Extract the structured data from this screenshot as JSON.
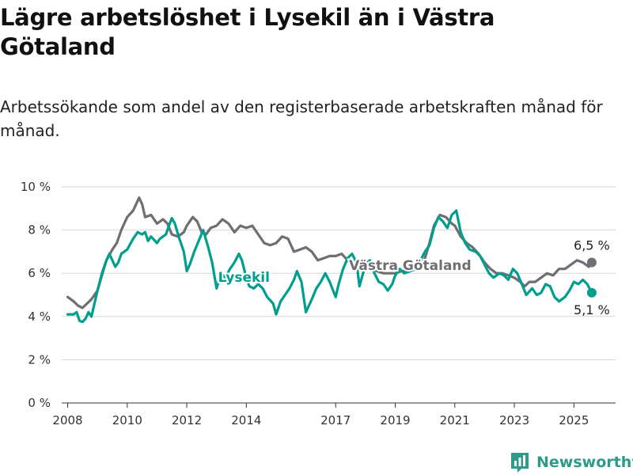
{
  "title": "Lägre arbetslöshet i Lysekil än i Västra Götaland",
  "subtitle": "Arbetssökande som andel av den registerbaserade arbetskraften månad för månad.",
  "brand": "Newsworthy",
  "colors": {
    "lysekil": "#009e8e",
    "vg": "#6e6e73",
    "grid": "#d6d6d6",
    "text": "#333333"
  },
  "chart_data": {
    "type": "line",
    "x_unit": "year",
    "xlim": [
      2007.8,
      2026.4
    ],
    "ylim": [
      0,
      10
    ],
    "y_ticks": [
      0,
      2,
      4,
      6,
      8,
      10
    ],
    "y_tick_labels": [
      "0 %",
      "2 %",
      "4 %",
      "6 %",
      "8 %",
      "10 %"
    ],
    "x_ticks": [
      2008,
      2010,
      2012,
      2014,
      2017,
      2019,
      2021,
      2023,
      2025
    ],
    "x_tick_labels": [
      "2008",
      "2010",
      "2012",
      "2014",
      "2017",
      "2019",
      "2021",
      "2023",
      "2025"
    ],
    "grid": true,
    "series": [
      {
        "name": "Västra Götaland",
        "key": "vg",
        "end_label": "6,5 %",
        "points": [
          [
            2008.0,
            4.9
          ],
          [
            2008.2,
            4.7
          ],
          [
            2008.35,
            4.5
          ],
          [
            2008.5,
            4.4
          ],
          [
            2008.65,
            4.6
          ],
          [
            2008.8,
            4.8
          ],
          [
            2009.0,
            5.2
          ],
          [
            2009.15,
            5.9
          ],
          [
            2009.3,
            6.6
          ],
          [
            2009.5,
            7.1
          ],
          [
            2009.65,
            7.4
          ],
          [
            2009.8,
            8.0
          ],
          [
            2009.9,
            8.3
          ],
          [
            2010.0,
            8.6
          ],
          [
            2010.2,
            8.9
          ],
          [
            2010.3,
            9.2
          ],
          [
            2010.4,
            9.5
          ],
          [
            2010.5,
            9.2
          ],
          [
            2010.6,
            8.6
          ],
          [
            2010.8,
            8.7
          ],
          [
            2011.0,
            8.3
          ],
          [
            2011.2,
            8.5
          ],
          [
            2011.35,
            8.3
          ],
          [
            2011.5,
            7.8
          ],
          [
            2011.7,
            7.7
          ],
          [
            2011.9,
            7.9
          ],
          [
            2012.0,
            8.2
          ],
          [
            2012.1,
            8.4
          ],
          [
            2012.2,
            8.6
          ],
          [
            2012.35,
            8.4
          ],
          [
            2012.5,
            7.9
          ],
          [
            2012.65,
            7.8
          ],
          [
            2012.8,
            8.1
          ],
          [
            2013.0,
            8.2
          ],
          [
            2013.2,
            8.5
          ],
          [
            2013.4,
            8.3
          ],
          [
            2013.6,
            7.9
          ],
          [
            2013.8,
            8.2
          ],
          [
            2014.0,
            8.1
          ],
          [
            2014.2,
            8.2
          ],
          [
            2014.4,
            7.8
          ],
          [
            2014.6,
            7.4
          ],
          [
            2014.8,
            7.3
          ],
          [
            2015.0,
            7.4
          ],
          [
            2015.2,
            7.7
          ],
          [
            2015.4,
            7.6
          ],
          [
            2015.6,
            7.0
          ],
          [
            2015.8,
            7.1
          ],
          [
            2016.0,
            7.2
          ],
          [
            2016.2,
            7.0
          ],
          [
            2016.4,
            6.6
          ],
          [
            2016.6,
            6.7
          ],
          [
            2016.8,
            6.8
          ],
          [
            2017.0,
            6.8
          ],
          [
            2017.2,
            6.9
          ],
          [
            2017.4,
            6.6
          ],
          [
            2017.6,
            6.4
          ],
          [
            2017.8,
            6.5
          ],
          [
            2018.0,
            6.3
          ],
          [
            2018.2,
            6.2
          ],
          [
            2018.4,
            6.1
          ],
          [
            2018.6,
            6.0
          ],
          [
            2018.8,
            6.0
          ],
          [
            2019.0,
            6.0
          ],
          [
            2019.2,
            6.1
          ],
          [
            2019.4,
            6.1
          ],
          [
            2019.6,
            6.2
          ],
          [
            2019.8,
            6.3
          ],
          [
            2020.0,
            6.7
          ],
          [
            2020.15,
            7.4
          ],
          [
            2020.3,
            8.2
          ],
          [
            2020.5,
            8.7
          ],
          [
            2020.7,
            8.6
          ],
          [
            2020.9,
            8.3
          ],
          [
            2021.0,
            8.2
          ],
          [
            2021.2,
            7.7
          ],
          [
            2021.4,
            7.4
          ],
          [
            2021.6,
            7.2
          ],
          [
            2021.8,
            6.9
          ],
          [
            2022.0,
            6.5
          ],
          [
            2022.2,
            6.2
          ],
          [
            2022.4,
            6.0
          ],
          [
            2022.6,
            6.0
          ],
          [
            2022.8,
            5.9
          ],
          [
            2023.0,
            5.8
          ],
          [
            2023.2,
            5.6
          ],
          [
            2023.35,
            5.4
          ],
          [
            2023.5,
            5.6
          ],
          [
            2023.7,
            5.6
          ],
          [
            2023.9,
            5.8
          ],
          [
            2024.1,
            6.0
          ],
          [
            2024.3,
            5.9
          ],
          [
            2024.5,
            6.2
          ],
          [
            2024.7,
            6.2
          ],
          [
            2024.9,
            6.4
          ],
          [
            2025.1,
            6.6
          ],
          [
            2025.3,
            6.5
          ],
          [
            2025.5,
            6.3
          ],
          [
            2025.6,
            6.5
          ]
        ]
      },
      {
        "name": "Lysekil",
        "key": "lysekil",
        "end_label": "5,1 %",
        "points": [
          [
            2008.0,
            4.1
          ],
          [
            2008.2,
            4.1
          ],
          [
            2008.3,
            4.2
          ],
          [
            2008.4,
            3.8
          ],
          [
            2008.5,
            3.75
          ],
          [
            2008.6,
            3.9
          ],
          [
            2008.7,
            4.2
          ],
          [
            2008.8,
            4.0
          ],
          [
            2008.9,
            4.6
          ],
          [
            2009.0,
            5.2
          ],
          [
            2009.15,
            6.0
          ],
          [
            2009.3,
            6.6
          ],
          [
            2009.4,
            6.9
          ],
          [
            2009.5,
            6.6
          ],
          [
            2009.6,
            6.3
          ],
          [
            2009.7,
            6.5
          ],
          [
            2009.8,
            6.9
          ],
          [
            2010.0,
            7.1
          ],
          [
            2010.2,
            7.6
          ],
          [
            2010.35,
            7.9
          ],
          [
            2010.5,
            7.8
          ],
          [
            2010.6,
            7.9
          ],
          [
            2010.7,
            7.5
          ],
          [
            2010.8,
            7.7
          ],
          [
            2011.0,
            7.4
          ],
          [
            2011.1,
            7.6
          ],
          [
            2011.3,
            7.8
          ],
          [
            2011.4,
            8.2
          ],
          [
            2011.5,
            8.55
          ],
          [
            2011.6,
            8.3
          ],
          [
            2011.75,
            7.6
          ],
          [
            2011.9,
            7.0
          ],
          [
            2012.0,
            6.1
          ],
          [
            2012.1,
            6.4
          ],
          [
            2012.25,
            7.0
          ],
          [
            2012.4,
            7.5
          ],
          [
            2012.55,
            8.0
          ],
          [
            2012.7,
            7.3
          ],
          [
            2012.85,
            6.5
          ],
          [
            2013.0,
            5.3
          ],
          [
            2013.15,
            6.0
          ],
          [
            2013.3,
            5.8
          ],
          [
            2013.45,
            6.2
          ],
          [
            2013.6,
            6.5
          ],
          [
            2013.75,
            6.9
          ],
          [
            2013.85,
            6.6
          ],
          [
            2014.0,
            5.8
          ],
          [
            2014.1,
            5.4
          ],
          [
            2014.25,
            5.3
          ],
          [
            2014.4,
            5.5
          ],
          [
            2014.55,
            5.3
          ],
          [
            2014.7,
            4.9
          ],
          [
            2014.9,
            4.6
          ],
          [
            2015.0,
            4.1
          ],
          [
            2015.15,
            4.7
          ],
          [
            2015.3,
            5.0
          ],
          [
            2015.45,
            5.3
          ],
          [
            2015.6,
            5.7
          ],
          [
            2015.7,
            6.1
          ],
          [
            2015.85,
            5.6
          ],
          [
            2016.0,
            4.2
          ],
          [
            2016.2,
            4.8
          ],
          [
            2016.35,
            5.3
          ],
          [
            2016.5,
            5.6
          ],
          [
            2016.65,
            6.0
          ],
          [
            2016.8,
            5.6
          ],
          [
            2017.0,
            4.9
          ],
          [
            2017.1,
            5.5
          ],
          [
            2017.25,
            6.2
          ],
          [
            2017.4,
            6.7
          ],
          [
            2017.55,
            6.9
          ],
          [
            2017.7,
            6.5
          ],
          [
            2017.8,
            5.4
          ],
          [
            2017.9,
            5.9
          ],
          [
            2018.0,
            6.4
          ],
          [
            2018.15,
            6.6
          ],
          [
            2018.3,
            6.0
          ],
          [
            2018.45,
            5.6
          ],
          [
            2018.6,
            5.5
          ],
          [
            2018.75,
            5.2
          ],
          [
            2018.9,
            5.5
          ],
          [
            2019.0,
            5.9
          ],
          [
            2019.15,
            6.2
          ],
          [
            2019.3,
            6.0
          ],
          [
            2019.5,
            6.1
          ],
          [
            2019.7,
            6.2
          ],
          [
            2019.85,
            6.6
          ],
          [
            2020.0,
            7.0
          ],
          [
            2020.15,
            7.3
          ],
          [
            2020.3,
            8.1
          ],
          [
            2020.45,
            8.6
          ],
          [
            2020.6,
            8.4
          ],
          [
            2020.75,
            8.1
          ],
          [
            2020.9,
            8.7
          ],
          [
            2021.05,
            8.9
          ],
          [
            2021.2,
            7.9
          ],
          [
            2021.35,
            7.4
          ],
          [
            2021.5,
            7.1
          ],
          [
            2021.7,
            7.0
          ],
          [
            2021.85,
            6.8
          ],
          [
            2022.0,
            6.4
          ],
          [
            2022.15,
            6.0
          ],
          [
            2022.3,
            5.8
          ],
          [
            2022.5,
            6.0
          ],
          [
            2022.65,
            5.9
          ],
          [
            2022.8,
            5.7
          ],
          [
            2022.95,
            6.2
          ],
          [
            2023.1,
            6.0
          ],
          [
            2023.25,
            5.5
          ],
          [
            2023.4,
            5.0
          ],
          [
            2023.6,
            5.3
          ],
          [
            2023.75,
            5.0
          ],
          [
            2023.9,
            5.1
          ],
          [
            2024.05,
            5.5
          ],
          [
            2024.2,
            5.4
          ],
          [
            2024.35,
            4.9
          ],
          [
            2024.5,
            4.7
          ],
          [
            2024.7,
            4.9
          ],
          [
            2024.85,
            5.2
          ],
          [
            2025.0,
            5.6
          ],
          [
            2025.15,
            5.5
          ],
          [
            2025.3,
            5.7
          ],
          [
            2025.45,
            5.5
          ],
          [
            2025.6,
            5.1
          ]
        ]
      }
    ]
  }
}
